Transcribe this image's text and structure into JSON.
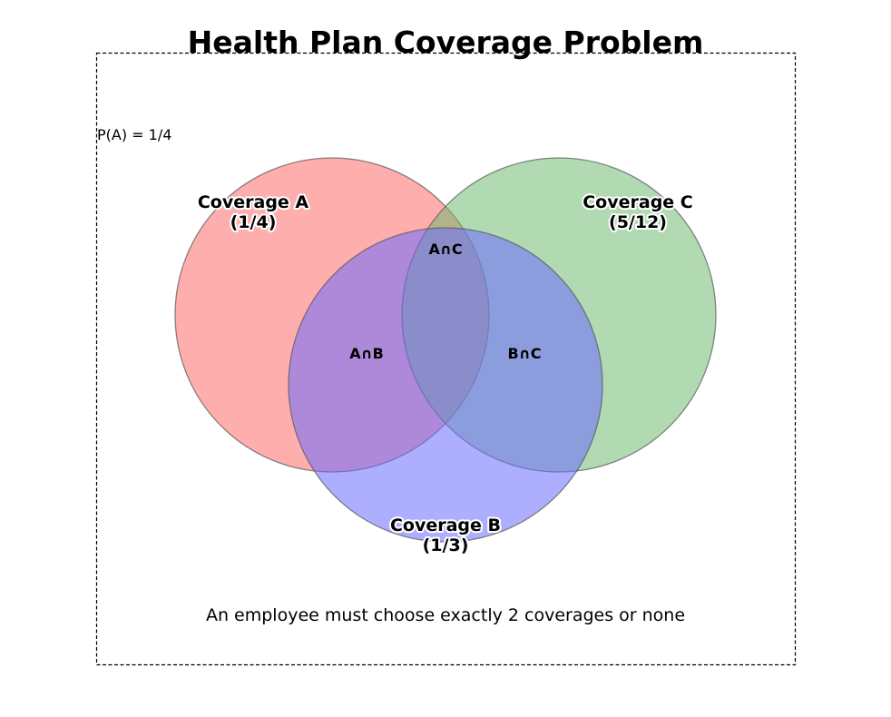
{
  "title": "Health Plan Coverage Problem",
  "corner_note": "P(A) = 1/4",
  "footer_note": "An employee must choose exactly 2 coverages or none",
  "sets": {
    "a": {
      "name": "Coverage A",
      "prob": "(1/4)",
      "color": "#ff6b6b"
    },
    "b": {
      "name": "Coverage B",
      "prob": "(1/3)",
      "color": "#6b6bff"
    },
    "c": {
      "name": "Coverage C",
      "prob": "(5/12)",
      "color": "#6bb86b"
    }
  },
  "regions": {
    "ab": "A∩B",
    "ac": "A∩C",
    "bc": "B∩C"
  }
}
